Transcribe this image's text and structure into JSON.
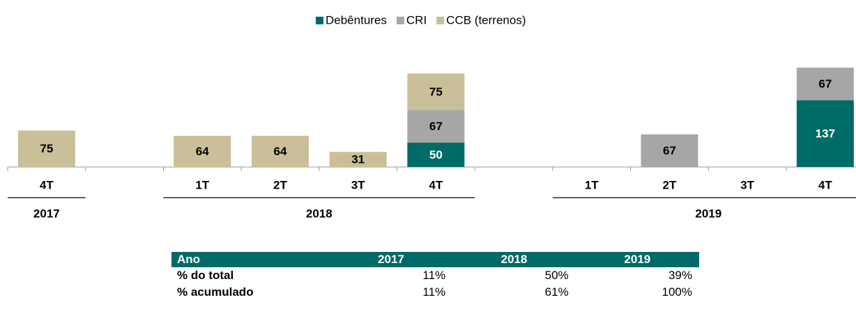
{
  "chart_data": {
    "type": "stacked_bar",
    "categories": [
      "4T",
      null,
      "1T",
      "2T",
      "3T",
      "4T",
      null,
      "1T",
      "2T",
      "3T",
      "4T"
    ],
    "groups": [
      {
        "name": "2017",
        "from": 0,
        "to": 0
      },
      {
        "name": "2018",
        "from": 2,
        "to": 5
      },
      {
        "name": "2019",
        "from": 7,
        "to": 10
      }
    ],
    "series": [
      {
        "name": "Debêntures",
        "color": "#006b66",
        "values": [
          null,
          null,
          null,
          null,
          null,
          50,
          null,
          null,
          null,
          null,
          137
        ]
      },
      {
        "name": "CRI",
        "color": "#a6a6a6",
        "values": [
          null,
          null,
          null,
          null,
          null,
          67,
          null,
          null,
          67,
          null,
          67
        ]
      },
      {
        "name": "CCB (terrenos)",
        "color": "#c9bf98",
        "values": [
          75,
          null,
          64,
          64,
          31,
          75,
          null,
          null,
          null,
          null,
          null
        ]
      }
    ],
    "ylim": [
      0,
      300
    ],
    "legend": "top"
  },
  "table": {
    "header": [
      "Ano",
      "2017",
      "2018",
      "2019"
    ],
    "rows": [
      [
        "% do total",
        "11%",
        "50%",
        "39%"
      ],
      [
        "% acumulado",
        "11%",
        "61%",
        "100%"
      ]
    ]
  }
}
